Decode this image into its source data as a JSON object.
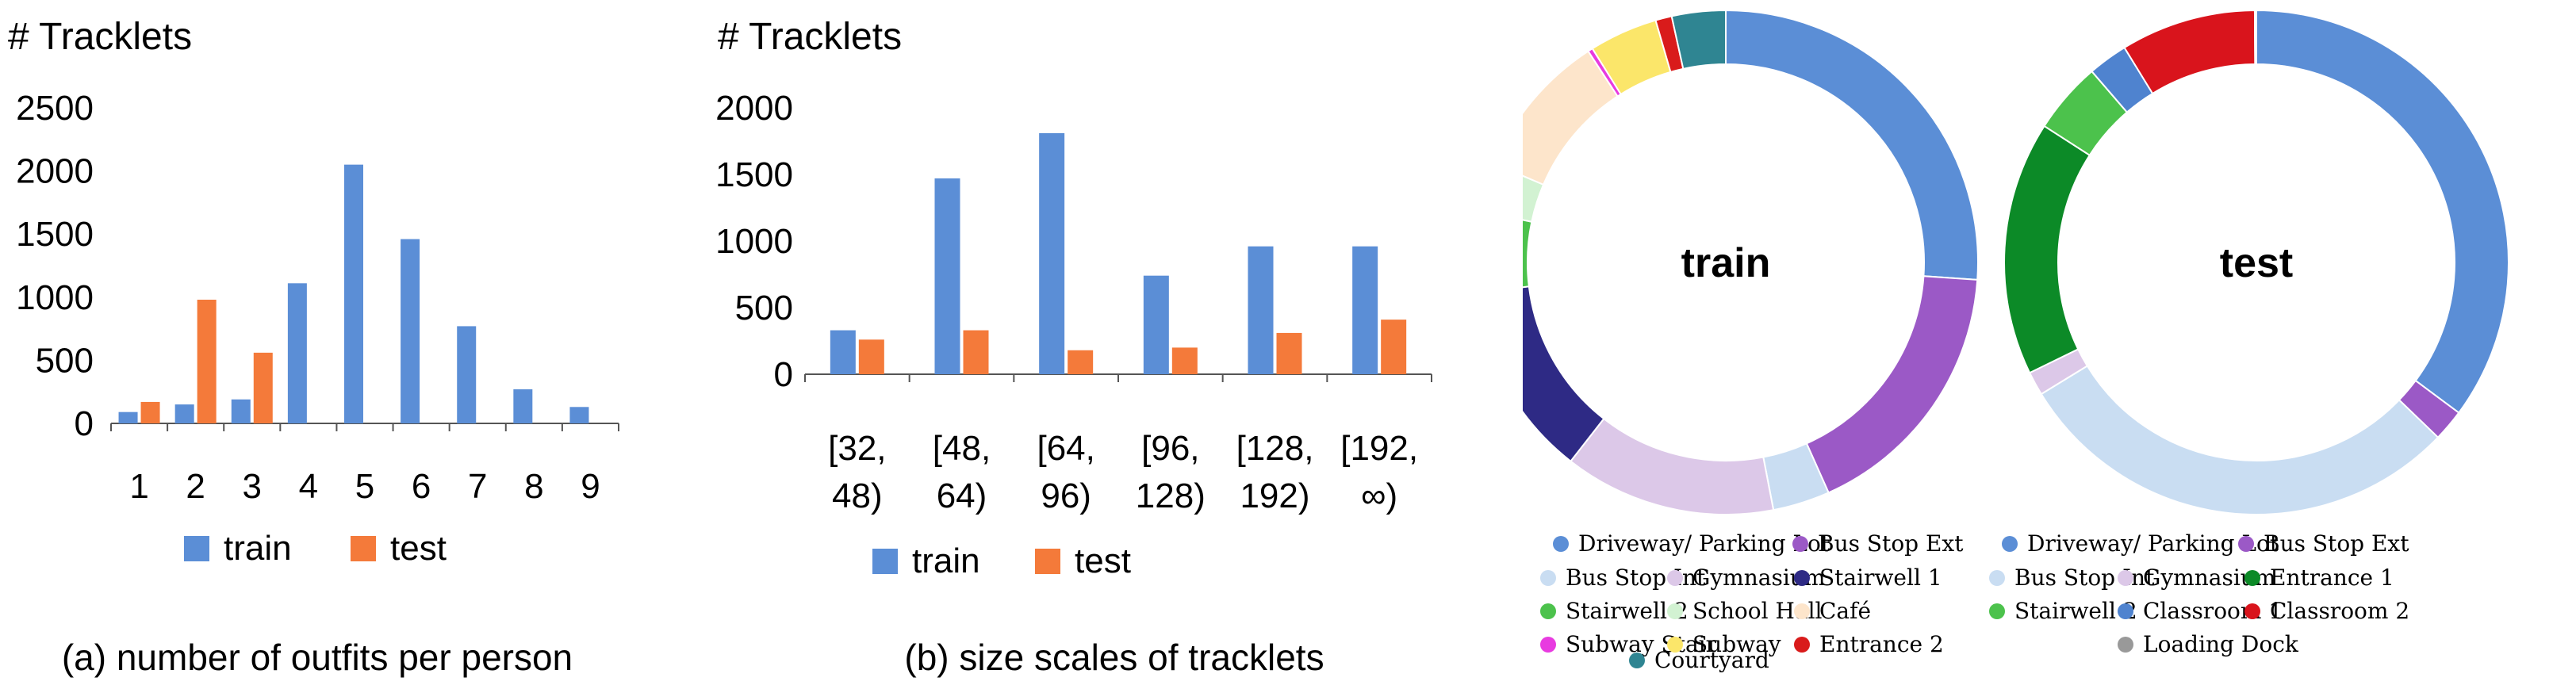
{
  "chart_data": [
    {
      "type": "bar",
      "ylabel": "# Tracklets",
      "caption": "(a) number of outfits per person",
      "categories": [
        "1",
        "2",
        "3",
        "4",
        "5",
        "6",
        "7",
        "8",
        "9"
      ],
      "ylim": [
        0,
        2500
      ],
      "yticks": [
        0,
        500,
        1000,
        1500,
        2000,
        2500
      ],
      "series": [
        {
          "name": "train",
          "color": "#5B8ED6",
          "values": [
            90,
            150,
            190,
            1110,
            2050,
            1460,
            770,
            270,
            130
          ]
        },
        {
          "name": "test",
          "color": "#F47A3A",
          "values": [
            170,
            980,
            560,
            0,
            0,
            0,
            0,
            0,
            0
          ]
        }
      ],
      "legend": "bottom"
    },
    {
      "type": "bar",
      "ylabel": "# Tracklets",
      "caption": "(b) size scales of tracklets",
      "categories": [
        [
          "[32,",
          "48)"
        ],
        [
          "[48,",
          "64)"
        ],
        [
          "[64,",
          "96)"
        ],
        [
          "[96,",
          "128)"
        ],
        [
          "[128,",
          "192)"
        ],
        [
          "[192,",
          "∞)"
        ]
      ],
      "ylim": [
        0,
        2000
      ],
      "yticks": [
        0,
        500,
        1000,
        1500,
        2000
      ],
      "series": [
        {
          "name": "train",
          "color": "#5B8ED6",
          "values": [
            330,
            1470,
            1810,
            740,
            960,
            960
          ]
        },
        {
          "name": "test",
          "color": "#F47A3A",
          "values": [
            260,
            330,
            180,
            200,
            310,
            410
          ]
        }
      ],
      "legend": "bottom"
    },
    {
      "type": "pie",
      "title": "train",
      "donut": true,
      "labels": [
        "Driveway/ Parking Lot",
        "Bus Stop Ext",
        "Bus Stop Int",
        "Gymnasium",
        "Stairwell 1",
        "Stairwell 2",
        "School Hall",
        "Café",
        "Subway Stair",
        "Subway",
        "Entrance 2",
        "Courtyard"
      ],
      "values": [
        25.0,
        16.5,
        3.5,
        13.0,
        12.0,
        5.0,
        3.0,
        9.0,
        0.3,
        4.2,
        1.0,
        3.3
      ],
      "colors": [
        "#5B8ED6",
        "#9B59C6",
        "#C9DDF2",
        "#DCC8E8",
        "#2E2A85",
        "#4CC24C",
        "#D2F2D2",
        "#FDE5CB",
        "#E83BE0",
        "#FBE66A",
        "#D91B1B",
        "#2F8592"
      ],
      "legend": "bottom"
    },
    {
      "type": "pie",
      "title": "test",
      "donut": true,
      "labels": [
        "Driveway/ Parking Lot",
        "Bus Stop Ext",
        "Bus Stop Int",
        "Gymnasium",
        "Entrance 1",
        "Stairwell 2",
        "Classroom 1",
        "Classroom 2",
        "Loading Dock"
      ],
      "values": [
        34.5,
        2.0,
        28.5,
        1.5,
        16.0,
        4.5,
        2.5,
        8.5,
        0.1
      ],
      "colors": [
        "#5B8ED6",
        "#9B59C6",
        "#C9DDF2",
        "#DCC8E8",
        "#0C8A27",
        "#4CC24C",
        "#4F83CF",
        "#D9141C",
        "#999999"
      ],
      "legend": "bottom"
    }
  ]
}
